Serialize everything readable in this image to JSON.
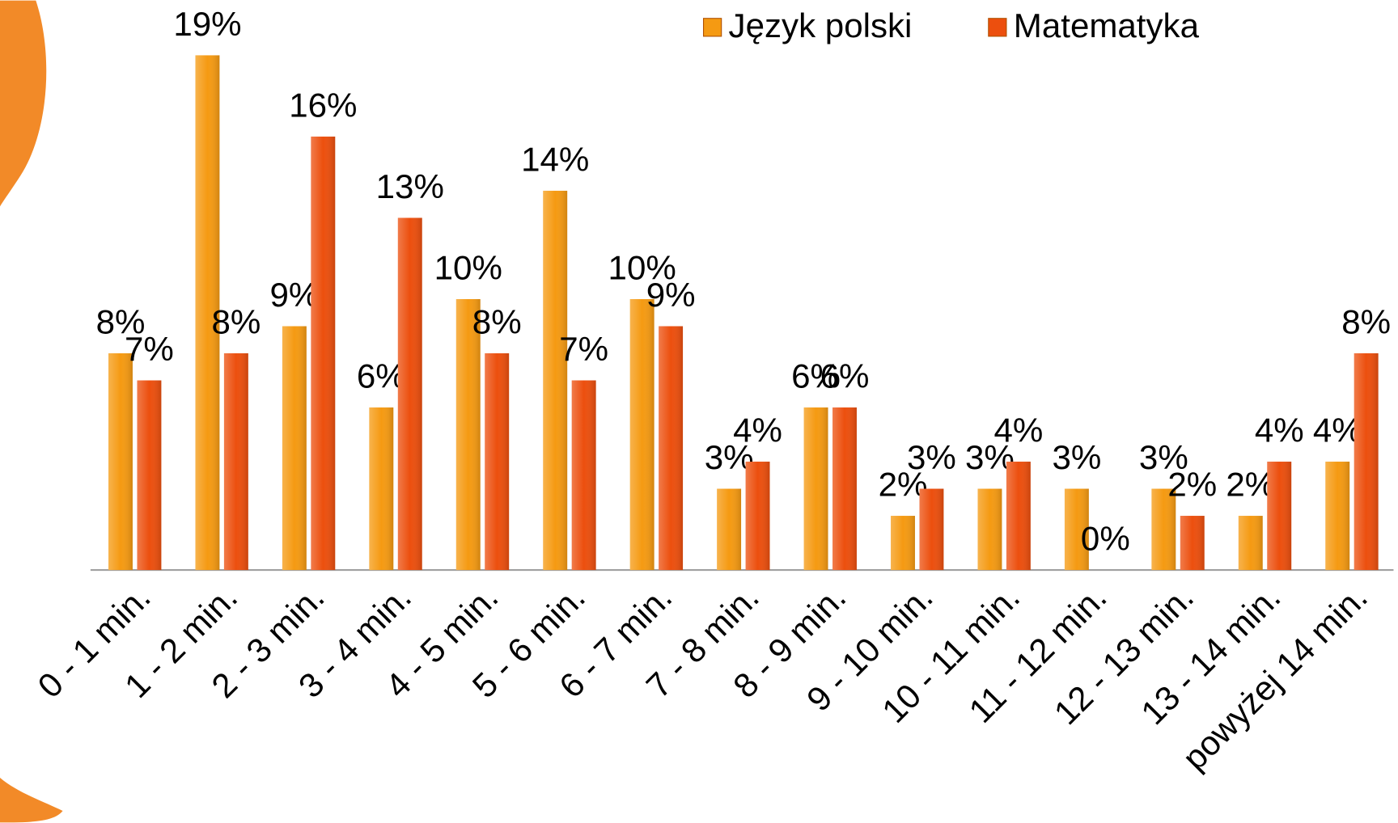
{
  "chart_data": {
    "type": "bar",
    "categories": [
      "0 - 1 min.",
      "1 - 2 min.",
      "2 - 3 min.",
      "3 - 4 min.",
      "4 - 5 min.",
      "5 - 6 min.",
      "6 - 7 min.",
      "7 - 8 min.",
      "8 - 9 min.",
      "9 - 10 min.",
      "10 - 11 min.",
      "11 - 12 min.",
      "12 - 13 min.",
      "13 - 14 min.",
      "powyżej 14 min."
    ],
    "series": [
      {
        "name": "Język polski",
        "color": "#f59a12",
        "values": [
          8,
          19,
          9,
          6,
          10,
          14,
          10,
          3,
          6,
          2,
          3,
          3,
          3,
          2,
          4
        ],
        "value_labels": [
          "8%",
          "19%",
          "9%",
          "6%",
          "10%",
          "14%",
          "10%",
          "3%",
          "6%",
          "2%",
          "3%",
          "3%",
          "3%",
          "2%",
          "4%"
        ]
      },
      {
        "name": "Matematyka",
        "color": "#ec4f0e",
        "values": [
          7,
          8,
          16,
          13,
          8,
          7,
          9,
          4,
          6,
          3,
          4,
          0,
          2,
          4,
          8
        ],
        "value_labels": [
          "7%",
          "8%",
          "16%",
          "13%",
          "8%",
          "7%",
          "9%",
          "4%",
          "6%",
          "3%",
          "4%",
          "0%",
          "2%",
          "4%",
          "8%"
        ]
      }
    ],
    "ylim": [
      0,
      20
    ],
    "legend": "top"
  }
}
